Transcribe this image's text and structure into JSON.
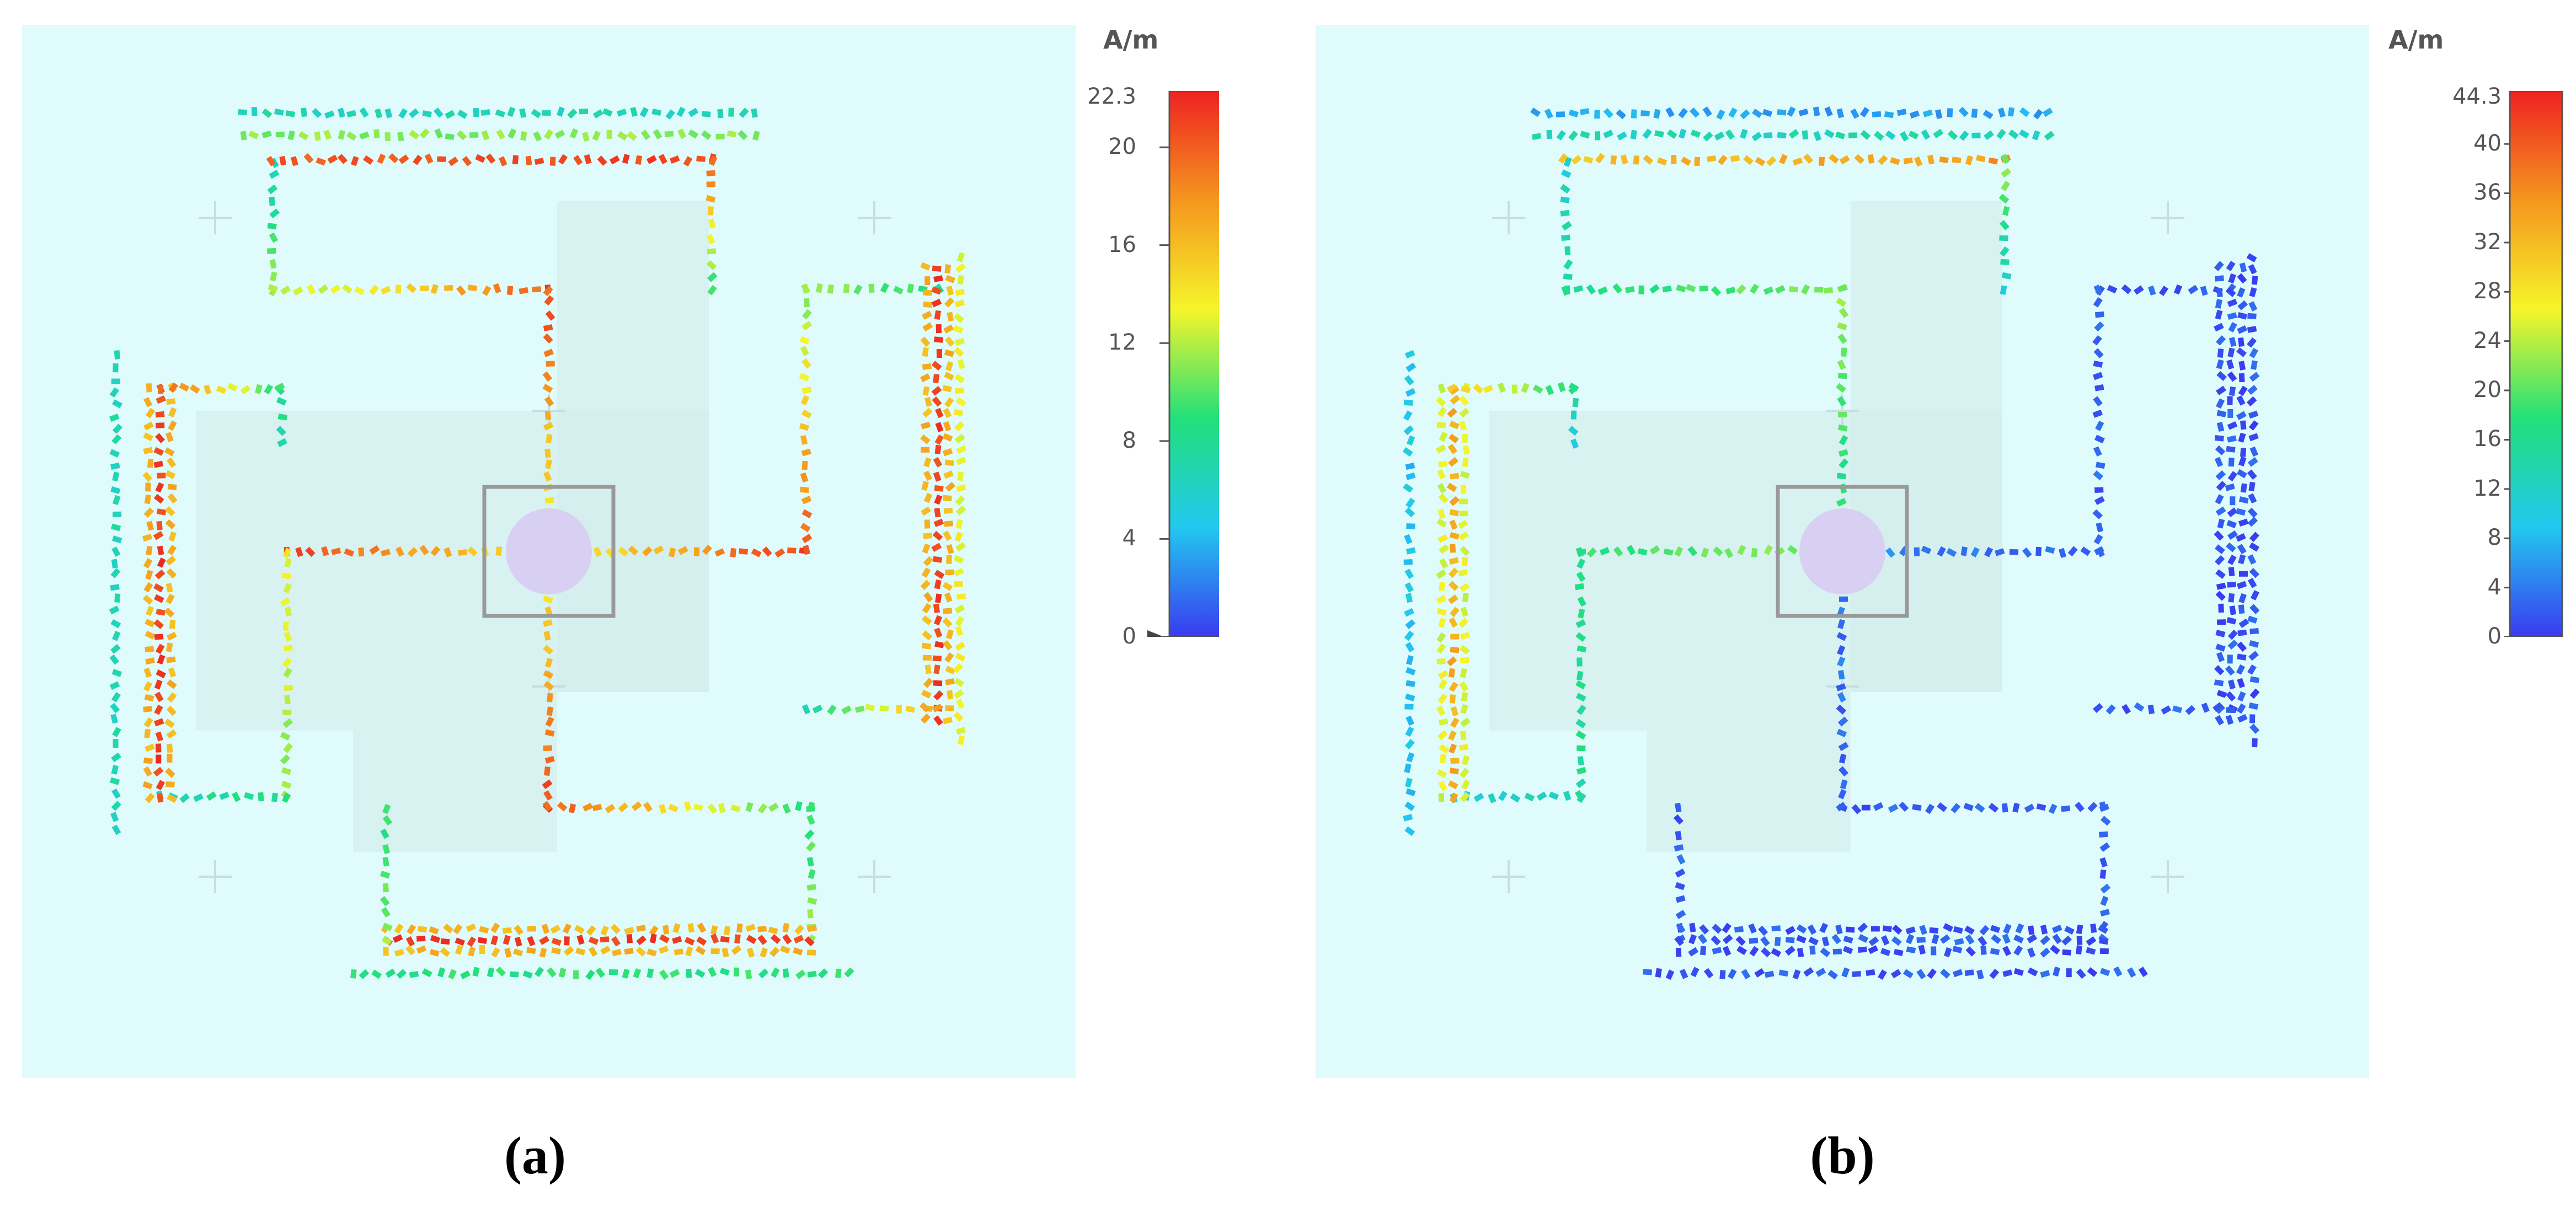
{
  "panels": [
    {
      "label": "(a)",
      "colorbar": {
        "unit": "A/m",
        "max_label": "22.3",
        "ticks": [
          "20",
          "16",
          "12",
          "8",
          "4",
          "0"
        ],
        "min": 0,
        "max": 22.3
      }
    },
    {
      "label": "(b)",
      "colorbar": {
        "unit": "A/m",
        "max_label": "44.3",
        "ticks": [
          "40",
          "36",
          "32",
          "28",
          "24",
          "20",
          "16",
          "12",
          "8",
          "4",
          "0"
        ],
        "min": 0,
        "max": 44.3
      }
    }
  ],
  "colors": {
    "background": "#e0fbfb",
    "antenna": "#d4eeee",
    "port": "#d8d0f2",
    "colormap": [
      "#3a3af0",
      "#22c8f0",
      "#22e07a",
      "#f5f52a",
      "#f5961e",
      "#ee2222"
    ]
  }
}
